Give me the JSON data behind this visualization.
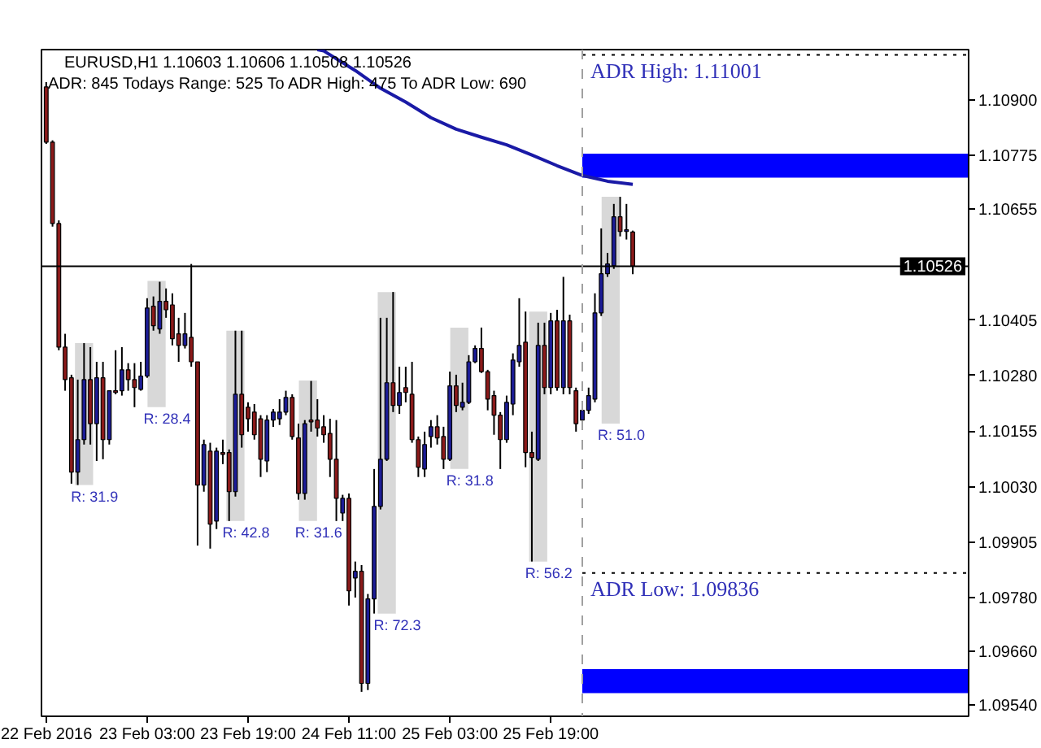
{
  "chart_data": {
    "type": "candlestick",
    "title": "EURUSD,H1 1.10603 1.10606 1.10508 1.10526",
    "subtitle": "ADR: 845 Todays Range: 525 To ADR High: 475 To ADR Low: 690",
    "x": [
      "2016-02-22T11:00",
      "2016-02-22T12:00",
      "2016-02-22T13:00",
      "2016-02-22T14:00",
      "2016-02-22T15:00",
      "2016-02-22T16:00",
      "2016-02-22T17:00",
      "2016-02-22T18:00",
      "2016-02-22T19:00",
      "2016-02-22T20:00",
      "2016-02-22T21:00",
      "2016-02-22T22:00",
      "2016-02-22T23:00",
      "2016-02-23T00:00",
      "2016-02-23T01:00",
      "2016-02-23T02:00",
      "2016-02-23T03:00",
      "2016-02-23T04:00",
      "2016-02-23T05:00",
      "2016-02-23T06:00",
      "2016-02-23T07:00",
      "2016-02-23T08:00",
      "2016-02-23T09:00",
      "2016-02-23T10:00",
      "2016-02-23T11:00",
      "2016-02-23T12:00",
      "2016-02-23T13:00",
      "2016-02-23T14:00",
      "2016-02-23T15:00",
      "2016-02-23T16:00",
      "2016-02-23T17:00",
      "2016-02-23T18:00",
      "2016-02-23T19:00",
      "2016-02-23T20:00",
      "2016-02-23T21:00",
      "2016-02-23T22:00",
      "2016-02-23T23:00",
      "2016-02-24T00:00",
      "2016-02-24T01:00",
      "2016-02-24T02:00",
      "2016-02-24T03:00",
      "2016-02-24T04:00",
      "2016-02-24T05:00",
      "2016-02-24T06:00",
      "2016-02-24T07:00",
      "2016-02-24T08:00",
      "2016-02-24T09:00",
      "2016-02-24T10:00",
      "2016-02-24T11:00",
      "2016-02-24T12:00",
      "2016-02-24T13:00",
      "2016-02-24T14:00",
      "2016-02-24T15:00",
      "2016-02-24T16:00",
      "2016-02-24T17:00",
      "2016-02-24T18:00",
      "2016-02-24T19:00",
      "2016-02-24T20:00",
      "2016-02-24T21:00",
      "2016-02-24T22:00",
      "2016-02-24T23:00",
      "2016-02-25T00:00",
      "2016-02-25T01:00",
      "2016-02-25T02:00",
      "2016-02-25T03:00",
      "2016-02-25T04:00",
      "2016-02-25T05:00",
      "2016-02-25T06:00",
      "2016-02-25T07:00",
      "2016-02-25T08:00",
      "2016-02-25T09:00",
      "2016-02-25T10:00",
      "2016-02-25T11:00",
      "2016-02-25T12:00",
      "2016-02-25T13:00",
      "2016-02-25T14:00",
      "2016-02-25T15:00",
      "2016-02-25T16:00",
      "2016-02-25T17:00",
      "2016-02-25T18:00",
      "2016-02-25T19:00",
      "2016-02-25T20:00",
      "2016-02-25T21:00",
      "2016-02-25T22:00",
      "2016-02-25T23:00",
      "2016-02-26T00:00",
      "2016-02-26T01:00",
      "2016-02-26T02:00",
      "2016-02-26T03:00",
      "2016-02-26T04:00",
      "2016-02-26T05:00",
      "2016-02-26T06:00",
      "2016-02-26T07:00",
      "2016-02-26T08:00"
    ],
    "ohlc": [
      [
        1.10929,
        1.1094,
        1.10801,
        1.10805
      ],
      [
        1.10805,
        1.10809,
        1.10615,
        1.10622
      ],
      [
        1.10622,
        1.10629,
        1.10337,
        1.10344
      ],
      [
        1.10344,
        1.10374,
        1.10246,
        1.10271
      ],
      [
        1.10275,
        1.10282,
        1.10037,
        1.10063
      ],
      [
        1.10063,
        1.10271,
        1.10034,
        1.10136
      ],
      [
        1.10136,
        1.10353,
        1.10125,
        1.10271
      ],
      [
        1.10271,
        1.10344,
        1.10125,
        1.10172
      ],
      [
        1.10172,
        1.10311,
        1.10088,
        1.10275
      ],
      [
        1.10275,
        1.10311,
        1.10092,
        1.10136
      ],
      [
        1.10136,
        1.10246,
        1.10125,
        1.10246
      ],
      [
        1.10246,
        1.10337,
        1.10238,
        1.10242
      ],
      [
        1.10246,
        1.10344,
        1.10235,
        1.10293
      ],
      [
        1.10293,
        1.10308,
        1.10246,
        1.10271
      ],
      [
        1.10271,
        1.10308,
        1.10209,
        1.10253
      ],
      [
        1.10249,
        1.10311,
        1.10246,
        1.10279
      ],
      [
        1.10279,
        1.10454,
        1.10275,
        1.10432
      ],
      [
        1.10436,
        1.10458,
        1.10381,
        1.10392
      ],
      [
        1.10385,
        1.10491,
        1.10374,
        1.10447
      ],
      [
        1.10447,
        1.10476,
        1.1041,
        1.10428
      ],
      [
        1.10439,
        1.10465,
        1.10348,
        1.10363
      ],
      [
        1.10374,
        1.1041,
        1.10311,
        1.10348
      ],
      [
        1.10348,
        1.10421,
        1.10341,
        1.10374
      ],
      [
        1.10366,
        1.10531,
        1.103,
        1.10311
      ],
      [
        1.10311,
        1.10311,
        1.09898,
        1.10034
      ],
      [
        1.10034,
        1.10136,
        1.10019,
        1.10125
      ],
      [
        1.1011,
        1.10129,
        1.09891,
        1.09946
      ],
      [
        1.09953,
        1.10118,
        1.09935,
        1.1011
      ],
      [
        1.10107,
        1.10136,
        1.10081,
        1.10103
      ],
      [
        1.10107,
        1.10114,
        1.09953,
        1.10019
      ],
      [
        1.10019,
        1.10381,
        1.10008,
        1.10238
      ],
      [
        1.10238,
        1.10381,
        1.10118,
        1.10147
      ],
      [
        1.10209,
        1.1022,
        1.10154,
        1.10183
      ],
      [
        1.10198,
        1.10216,
        1.10136,
        1.10147
      ],
      [
        1.10183,
        1.10191,
        1.10052,
        1.10092
      ],
      [
        1.10088,
        1.10191,
        1.10063,
        1.1018
      ],
      [
        1.1018,
        1.10205,
        1.10165,
        1.10198
      ],
      [
        1.10183,
        1.10227,
        1.10169,
        1.10198
      ],
      [
        1.10198,
        1.10246,
        1.10191,
        1.10231
      ],
      [
        1.10231,
        1.10238,
        1.10136,
        1.10143
      ],
      [
        1.1014,
        1.10172,
        1.10001,
        1.10015
      ],
      [
        1.10015,
        1.1018,
        1.10001,
        1.10172
      ],
      [
        1.1018,
        1.10268,
        1.10154,
        1.10176
      ],
      [
        1.1018,
        1.10227,
        1.10143,
        1.10162
      ],
      [
        1.10165,
        1.10191,
        1.10129,
        1.10147
      ],
      [
        1.1015,
        1.10183,
        1.10052,
        1.10092
      ],
      [
        1.10092,
        1.1018,
        1.09953,
        1.10004
      ],
      [
        1.09971,
        1.10012,
        1.09953,
        1.10004
      ],
      [
        1.10004,
        1.10015,
        1.09763,
        1.09796
      ],
      [
        1.09825,
        1.09862,
        1.09781,
        1.0984
      ],
      [
        1.0984,
        1.09854,
        1.09569,
        1.09588
      ],
      [
        1.09588,
        1.09789,
        1.09573,
        1.09778
      ],
      [
        1.09778,
        1.1007,
        1.09745,
        1.09986
      ],
      [
        1.09986,
        1.1041,
        1.09979,
        1.10092
      ],
      [
        1.10092,
        1.1041,
        1.10088,
        1.10264
      ],
      [
        1.10264,
        1.10468,
        1.10198,
        1.10213
      ],
      [
        1.10213,
        1.103,
        1.10194,
        1.10242
      ],
      [
        1.10253,
        1.103,
        1.1022,
        1.10242
      ],
      [
        1.10238,
        1.10311,
        1.10129,
        1.10136
      ],
      [
        1.10136,
        1.10143,
        1.10052,
        1.10074
      ],
      [
        1.1007,
        1.10154,
        1.10052,
        1.10125
      ],
      [
        1.10143,
        1.1018,
        1.10118,
        1.10165
      ],
      [
        1.10165,
        1.10191,
        1.10125,
        1.1014
      ],
      [
        1.10143,
        1.10165,
        1.1007,
        1.10092
      ],
      [
        1.10092,
        1.10289,
        1.10088,
        1.10257
      ],
      [
        1.10257,
        1.10282,
        1.10198,
        1.10213
      ],
      [
        1.10209,
        1.10264,
        1.10202,
        1.1022
      ],
      [
        1.1022,
        1.10326,
        1.10216,
        1.10311
      ],
      [
        1.10311,
        1.10348,
        1.10308,
        1.10341
      ],
      [
        1.10341,
        1.10388,
        1.10286,
        1.10289
      ],
      [
        1.10289,
        1.10293,
        1.10202,
        1.10227
      ],
      [
        1.10235,
        1.10246,
        1.10147,
        1.10191
      ],
      [
        1.10191,
        1.10198,
        1.1007,
        1.10136
      ],
      [
        1.10136,
        1.10235,
        1.10129,
        1.1022
      ],
      [
        1.10216,
        1.1033,
        1.10191,
        1.10315
      ],
      [
        1.10311,
        1.10454,
        1.103,
        1.10348
      ],
      [
        1.10355,
        1.10424,
        1.10074,
        1.10107
      ],
      [
        1.10107,
        1.10154,
        1.09862,
        1.10096
      ],
      [
        1.10092,
        1.10399,
        1.10088,
        1.10348
      ],
      [
        1.10348,
        1.10399,
        1.10238,
        1.10253
      ],
      [
        1.10253,
        1.10421,
        1.10238,
        1.10403
      ],
      [
        1.10403,
        1.10428,
        1.10246,
        1.10253
      ],
      [
        1.10253,
        1.10502,
        1.10238,
        1.10403
      ],
      [
        1.10403,
        1.10417,
        1.10238,
        1.10253
      ],
      [
        1.10246,
        1.10253,
        1.10154,
        1.10172
      ],
      [
        1.1018,
        1.10213,
        1.10172,
        1.10202
      ],
      [
        1.10202,
        1.10253,
        1.10194,
        1.10235
      ],
      [
        1.10227,
        1.10465,
        1.1022,
        1.10421
      ],
      [
        1.10421,
        1.10611,
        1.10414,
        1.10509
      ],
      [
        1.10509,
        1.10556,
        1.10502,
        1.10531
      ],
      [
        1.10527,
        1.10666,
        1.1052,
        1.10637
      ],
      [
        1.10637,
        1.10682,
        1.10593,
        1.10604
      ],
      [
        1.10604,
        1.10666,
        1.10586,
        1.10608
      ],
      [
        1.10603,
        1.10606,
        1.10508,
        1.10526
      ]
    ],
    "colors": [
      "#8b1a1a",
      "#8b1a1a",
      "#8b1a1a",
      "#8b1a1a",
      "#8b1a1a",
      "#1c1c96",
      "#1c1c96",
      "#8b1a1a",
      "#1c1c96",
      "#8b1a1a",
      "#1c1c96",
      "#8b1a1a",
      "#1c1c96",
      "#8b1a1a",
      "#8b1a1a",
      "#1c1c96",
      "#1c1c96",
      "#8b1a1a",
      "#1c1c96",
      "#8b1a1a",
      "#8b1a1a",
      "#8b1a1a",
      "#1c1c96",
      "#8b1a1a",
      "#8b1a1a",
      "#1c1c96",
      "#8b1a1a",
      "#1c1c96",
      "#8b1a1a",
      "#8b1a1a",
      "#1c1c96",
      "#8b1a1a",
      "#8b1a1a",
      "#8b1a1a",
      "#8b1a1a",
      "#1c1c96",
      "#1c1c96",
      "#1c1c96",
      "#1c1c96",
      "#8b1a1a",
      "#8b1a1a",
      "#1c1c96",
      "#8b1a1a",
      "#8b1a1a",
      "#8b1a1a",
      "#8b1a1a",
      "#8b1a1a",
      "#1c1c96",
      "#8b1a1a",
      "#1c1c96",
      "#8b1a1a",
      "#1c1c96",
      "#1c1c96",
      "#1c1c96",
      "#1c1c96",
      "#8b1a1a",
      "#1c1c96",
      "#8b1a1a",
      "#8b1a1a",
      "#8b1a1a",
      "#1c1c96",
      "#1c1c96",
      "#8b1a1a",
      "#8b1a1a",
      "#1c1c96",
      "#8b1a1a",
      "#1c1c96",
      "#1c1c96",
      "#1c1c96",
      "#8b1a1a",
      "#8b1a1a",
      "#8b1a1a",
      "#8b1a1a",
      "#1c1c96",
      "#1c1c96",
      "#1c1c96",
      "#8b1a1a",
      "#8b1a1a",
      "#1c1c96",
      "#8b1a1a",
      "#1c1c96",
      "#8b1a1a",
      "#1c1c96",
      "#8b1a1a",
      "#8b1a1a",
      "#1c1c96",
      "#1c1c96",
      "#1c1c96",
      "#1c1c96",
      "#1c1c96",
      "#1c1c96",
      "#8b1a1a",
      "#1c1c96",
      "#8b1a1a"
    ],
    "series": [
      {
        "type": "bar",
        "color": "#d8d8d8",
        "x": [
          "2016-02-22T17:00",
          "2016-02-23T04:30",
          "2016-02-23T17:00",
          "2016-02-24T04:30",
          "2016-02-24T17:00",
          "2016-02-25T04:30",
          "2016-02-25T17:00",
          "2016-02-26T04:30"
        ],
        "base": [
          1.10034,
          1.10209,
          1.09953,
          1.09953,
          1.09745,
          1.1007,
          1.09862,
          1.10172
        ],
        "values": [
          0.00319,
          0.00284,
          0.00428,
          0.00316,
          0.00723,
          0.00318,
          0.00562,
          0.0051
        ]
      },
      {
        "type": "line",
        "color": "#1a1aa6",
        "x": [
          "2016-02-24T06:00",
          "2016-02-24T07:00",
          "2016-02-24T12:00",
          "2016-02-24T16:00",
          "2016-02-24T20:00",
          "2016-02-25T00:00",
          "2016-02-25T04:00",
          "2016-02-25T08:00",
          "2016-02-25T12:00",
          "2016-02-25T16:00",
          "2016-02-25T20:00",
          "2016-02-26T00:00",
          "2016-02-26T04:00",
          "2016-02-26T08:00"
        ],
        "values": [
          1.11013,
          1.1101,
          1.10966,
          1.10926,
          1.10895,
          1.1086,
          1.10834,
          1.10816,
          1.10799,
          1.10776,
          1.10752,
          1.1073,
          1.10717,
          1.1071
        ]
      }
    ],
    "annotations": [
      {
        "text": "R: 31.9",
        "x": "2016-02-22T17:00",
        "y": 1.10034
      },
      {
        "text": "R: 28.4",
        "x": "2016-02-23T04:30",
        "y": 1.10209
      },
      {
        "text": "R: 42.8",
        "x": "2016-02-23T17:00",
        "y": 1.09953
      },
      {
        "text": "R: 31.6",
        "x": "2016-02-24T04:30",
        "y": 1.09953
      },
      {
        "text": "R: 72.3",
        "x": "2016-02-24T17:00",
        "y": 1.09745
      },
      {
        "text": "R: 31.8",
        "x": "2016-02-25T04:30",
        "y": 1.1007
      },
      {
        "text": "R: 56.2",
        "x": "2016-02-25T17:00",
        "y": 1.09862
      },
      {
        "text": "R: 51.0",
        "x": "2016-02-26T04:30",
        "y": 1.10172
      }
    ],
    "ref_lines": [
      {
        "axis": "y",
        "value": 1.10526,
        "label": "1.10526",
        "color": "#000000",
        "line_style": "solid"
      },
      {
        "axis": "x",
        "value": "2016-02-26T00:00",
        "color": "#a0a0a0",
        "line_style": "dashed"
      },
      {
        "axis": "y",
        "value": 1.11001,
        "label": "ADR High: 1.11001",
        "color": "#000000",
        "line_style": "dotted"
      },
      {
        "axis": "y",
        "value": 1.09836,
        "label": "ADR Low: 1.09836",
        "color": "#000000",
        "line_style": "dotted"
      }
    ],
    "bands": [
      {
        "axis": "y",
        "from": 1.10725,
        "to": 1.10779,
        "color": "#0000ff"
      },
      {
        "axis": "y",
        "from": 1.09566,
        "to": 1.0962,
        "color": "#0000ff"
      }
    ],
    "xlim": [
      "2016-02-22T10:15",
      "2016-02-28T13:15"
    ],
    "xticks": [
      {
        "value": "2016-02-22T11:00",
        "label": "22 Feb 2016"
      },
      {
        "value": "2016-02-23T03:00",
        "label": "23 Feb 03:00"
      },
      {
        "value": "2016-02-23T19:00",
        "label": "23 Feb 19:00"
      },
      {
        "value": "2016-02-24T11:00",
        "label": "24 Feb 11:00"
      },
      {
        "value": "2016-02-25T03:00",
        "label": "25 Feb 03:00"
      },
      {
        "value": "2016-02-25T19:00",
        "label": "25 Feb 19:00"
      }
    ],
    "ylim": [
      1.09514,
      1.11013
    ],
    "yticks": [
      {
        "value": 1.109,
        "label": "1.10900"
      },
      1.10775,
      1.10655,
      1.10405,
      {
        "value": 1.1028,
        "label": "1.10280"
      },
      1.10155,
      {
        "value": 1.1003,
        "label": "1.10030"
      },
      1.09905,
      {
        "value": 1.0978,
        "label": "1.09780"
      },
      {
        "value": 1.0966,
        "label": "1.09660"
      },
      {
        "value": 1.0954,
        "label": "1.09540"
      }
    ]
  }
}
